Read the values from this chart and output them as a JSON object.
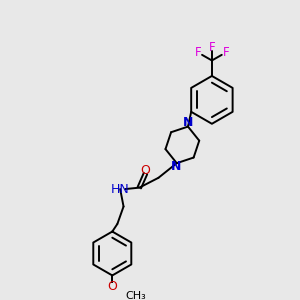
{
  "background_color": "#e8e8e8",
  "fig_size": [
    3.0,
    3.0
  ],
  "dpi": 100,
  "bond_color": "#000000",
  "bond_width": 1.4,
  "colors": {
    "N": "#0000cc",
    "O": "#cc0000",
    "F": "#dd00dd",
    "H": "#008080",
    "C": "#000000"
  },
  "xlim": [
    0,
    10
  ],
  "ylim": [
    0,
    10
  ]
}
